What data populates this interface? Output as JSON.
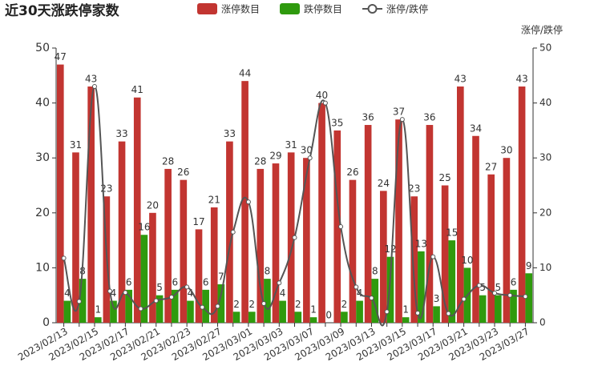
{
  "chart_data": {
    "type": "bar_line",
    "title": "近30天涨跌停家数",
    "y2_label": "涨停/跌停",
    "categories": [
      "2023/02/13",
      null,
      "2023/02/15",
      null,
      "2023/02/17",
      null,
      "2023/02/21",
      null,
      "2023/02/23",
      null,
      "2023/02/27",
      null,
      "2023/03/01",
      null,
      "2023/03/03",
      null,
      "2023/03/07",
      null,
      "2023/03/09",
      null,
      "2023/03/13",
      null,
      "2023/03/15",
      null,
      "2023/03/17",
      null,
      "2023/03/21",
      null,
      "2023/03/23",
      null,
      "2023/03/27"
    ],
    "series": [
      {
        "name": "涨停数目",
        "type": "bar",
        "color": "#c23531",
        "values": [
          47,
          31,
          43,
          23,
          33,
          41,
          20,
          28,
          26,
          17,
          21,
          33,
          44,
          28,
          29,
          31,
          30,
          40,
          35,
          26,
          36,
          24,
          37,
          23,
          36,
          25,
          43,
          34,
          27,
          30,
          43
        ]
      },
      {
        "name": "跌停数目",
        "type": "bar",
        "color": "#2f9a0e",
        "values": [
          4,
          8,
          1,
          4,
          6,
          16,
          5,
          6,
          4,
          6,
          7,
          2,
          2,
          8,
          4,
          2,
          1,
          0,
          2,
          4,
          8,
          12,
          1,
          13,
          3,
          15,
          10,
          5,
          5,
          6,
          9
        ]
      },
      {
        "name": "涨停/跌停",
        "type": "line",
        "axis": "y2",
        "color": "#555555",
        "values": [
          11.75,
          3.88,
          43,
          5.75,
          5.5,
          2.56,
          4,
          4.67,
          6.5,
          2.83,
          3,
          16.5,
          22,
          3.5,
          7.25,
          15.5,
          30,
          40,
          17.5,
          6.5,
          4.5,
          2,
          37,
          1.77,
          12,
          1.67,
          4.3,
          6.8,
          5.4,
          5,
          4.78
        ]
      }
    ],
    "ylim": [
      0,
      50
    ],
    "yticks": [
      0,
      10,
      20,
      30,
      40,
      50
    ],
    "y2lim": [
      0,
      50
    ],
    "y2ticks": [
      0,
      10,
      20,
      30,
      40,
      50
    ],
    "legend": "top"
  }
}
